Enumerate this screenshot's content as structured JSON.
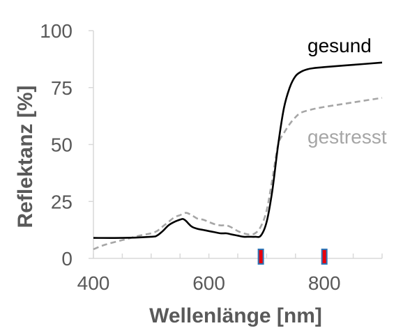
{
  "chart_data": {
    "type": "line",
    "xlabel": "Wellenlänge [nm]",
    "ylabel": "Reflektanz [%]",
    "xlim": [
      400,
      900
    ],
    "ylim": [
      0,
      100
    ],
    "x_ticks": [
      400,
      600,
      800
    ],
    "y_ticks": [
      0,
      25,
      50,
      75,
      100
    ],
    "grid": false,
    "legend": "inline labels",
    "series": [
      {
        "name": "gesund",
        "color": "#000000",
        "dash": "solid",
        "x": [
          400,
          450,
          500,
          510,
          520,
          530,
          540,
          550,
          555,
          560,
          570,
          580,
          590,
          600,
          610,
          620,
          630,
          640,
          650,
          660,
          670,
          680,
          690,
          700,
          710,
          720,
          730,
          740,
          750,
          760,
          770,
          780,
          800,
          850,
          900
        ],
        "y": [
          9,
          9,
          9.5,
          10,
          12,
          14.5,
          16,
          17,
          17.3,
          16.5,
          14,
          13,
          12.5,
          12,
          11.5,
          11,
          11,
          10.5,
          10,
          9.5,
          9.5,
          9.5,
          10,
          16,
          30,
          50,
          66,
          75,
          80,
          82,
          83,
          83.5,
          84,
          85,
          86
        ]
      },
      {
        "name": "gestresst",
        "color": "#a6a6a6",
        "dash": "dashed",
        "x": [
          400,
          420,
          450,
          480,
          500,
          510,
          520,
          530,
          540,
          550,
          560,
          570,
          580,
          590,
          600,
          610,
          620,
          630,
          640,
          650,
          660,
          670,
          680,
          690,
          700,
          710,
          720,
          730,
          740,
          750,
          760,
          780,
          800,
          850,
          900
        ],
        "y": [
          4,
          6,
          8,
          10,
          11,
          12,
          14,
          16,
          18,
          19,
          20,
          19,
          17.5,
          17,
          16,
          15,
          14.5,
          14.5,
          13.5,
          12,
          11,
          10.5,
          11,
          14,
          21,
          35,
          50,
          55,
          59,
          62,
          64,
          65.5,
          66.5,
          68.5,
          70.5
        ]
      }
    ],
    "markers": [
      {
        "x": 690,
        "fill": "#e8000b",
        "border": "#2e75b6"
      },
      {
        "x": 800,
        "fill": "#e8000b",
        "border": "#2e75b6"
      }
    ]
  }
}
